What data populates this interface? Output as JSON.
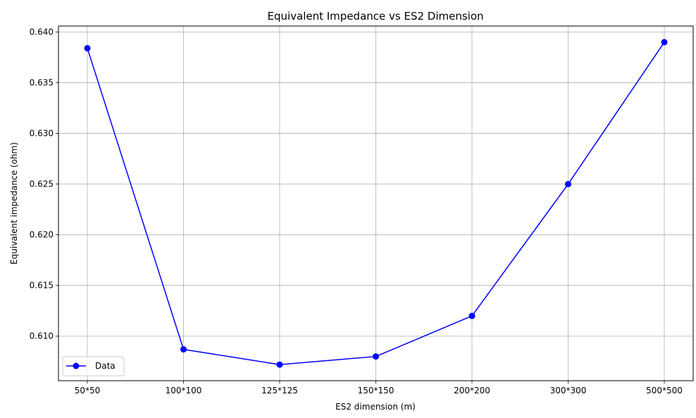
{
  "chart_data": {
    "type": "line",
    "title": "Equivalent Impedance vs ES2 Dimension",
    "xlabel": "ES2 dimension (m)",
    "ylabel": "Equivalent impedance (ohm)",
    "categories": [
      "50*50",
      "100*100",
      "125*125",
      "150*150",
      "200*200",
      "300*300",
      "500*500"
    ],
    "series": [
      {
        "name": "Data",
        "values": [
          0.6384,
          0.6087,
          0.6072,
          0.608,
          0.612,
          0.625,
          0.639
        ],
        "color": "#0000ff",
        "marker": "circle"
      }
    ],
    "yticks": [
      0.61,
      0.615,
      0.62,
      0.625,
      0.63,
      0.635,
      0.64
    ],
    "ytick_labels": [
      "0.610",
      "0.615",
      "0.620",
      "0.625",
      "0.630",
      "0.635",
      "0.640"
    ],
    "ylim": [
      0.60561,
      0.64059
    ],
    "grid": true,
    "legend": "lower-left"
  }
}
